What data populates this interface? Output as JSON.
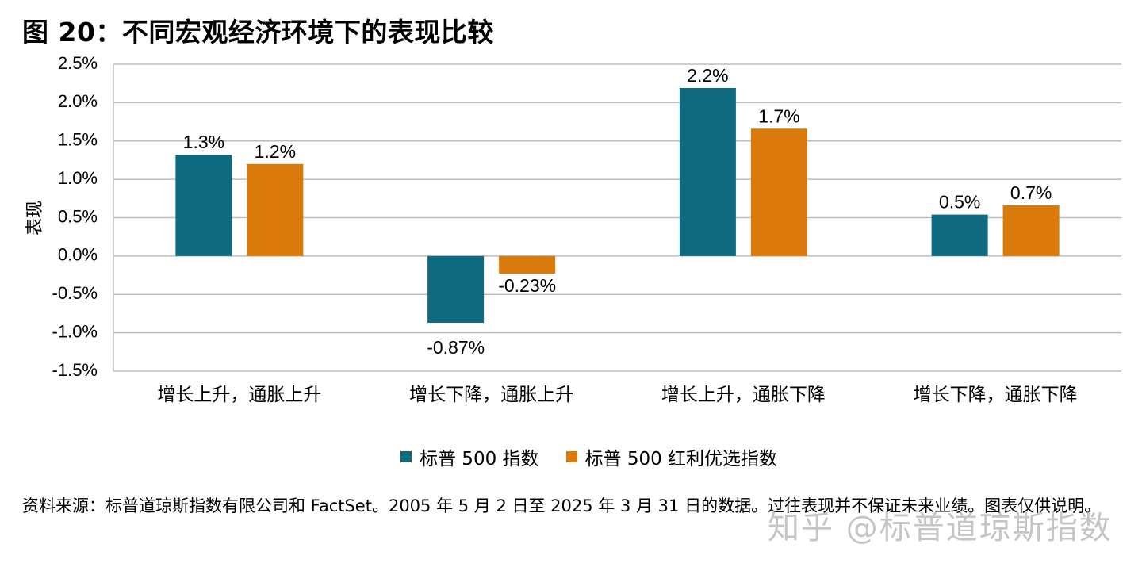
{
  "title": "图 20：不同宏观经济环境下的表现比较",
  "chart_data": {
    "type": "bar",
    "ylabel": "表现",
    "xlabel": "",
    "ylim": [
      -1.5,
      2.5
    ],
    "yticks": [
      "2.5%",
      "2.0%",
      "1.5%",
      "1.0%",
      "0.5%",
      "0.0%",
      "-0.5%",
      "-1.0%",
      "-1.5%"
    ],
    "ytick_values": [
      2.5,
      2.0,
      1.5,
      1.0,
      0.5,
      0.0,
      -0.5,
      -1.0,
      -1.5
    ],
    "grid": true,
    "legend_position": "bottom",
    "categories": [
      "增长上升，通胀上升",
      "增长下降，通胀上升",
      "增长上升，通胀下降",
      "增长下降，通胀下降"
    ],
    "series": [
      {
        "name": "标普 500 指数",
        "color": "#0E6A80",
        "values": [
          1.32,
          -0.87,
          2.19,
          0.54
        ],
        "labels": [
          "1.3%",
          "-0.87%",
          "2.2%",
          "0.5%"
        ]
      },
      {
        "name": "标普 500 红利优选指数",
        "color": "#D97A0B",
        "values": [
          1.2,
          -0.23,
          1.66,
          0.66
        ],
        "labels": [
          "1.2%",
          "-0.23%",
          "1.7%",
          "0.7%"
        ]
      }
    ]
  },
  "legend": {
    "item1": "标普 500 指数",
    "item2": "标普 500 红利优选指数"
  },
  "source": "资料来源：标普道琼斯指数有限公司和 FactSet。2005 年 5 月 2 日至 2025 年 3 月 31 日的数据。过往表现并不保证未来业绩。图表仅供说明。",
  "watermark": "知乎 @标普道琼斯指数"
}
